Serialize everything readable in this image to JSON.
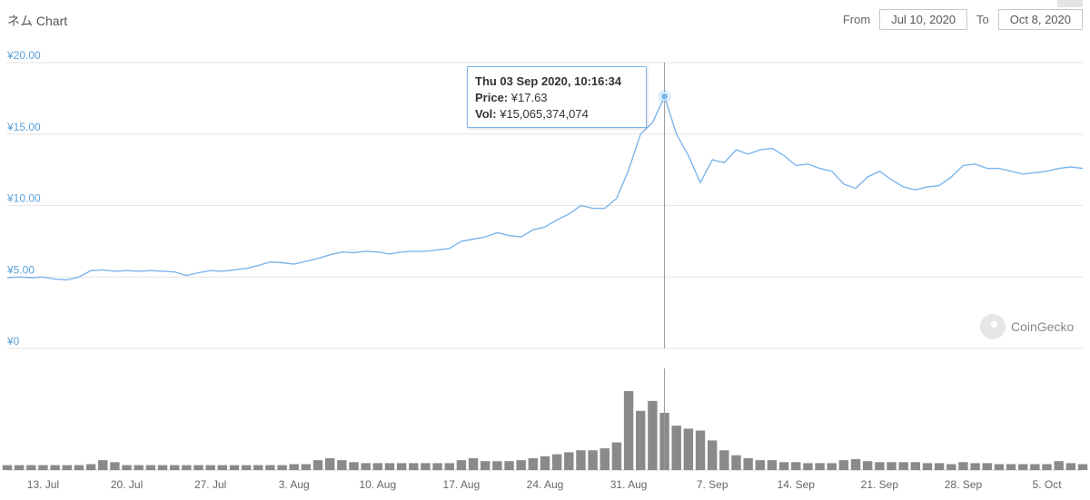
{
  "header": {
    "title": "ネム Chart",
    "from_label": "From",
    "from_value": "Jul 10, 2020",
    "to_label": "To",
    "to_value": "Oct 8, 2020"
  },
  "tooltip": {
    "date": "Thu 03 Sep 2020, 10:16:34",
    "price_label": "Price:",
    "price_value": "¥17.63",
    "vol_label": "Vol:",
    "vol_value": "¥15,065,374,074"
  },
  "watermark": {
    "text": "CoinGecko"
  },
  "colors": {
    "price_line": "#7cb5ec",
    "volume": "#8a8a8a",
    "axis_label": "#5aa0d8",
    "crosshair": "#999999"
  },
  "chart_data": {
    "type": "line",
    "series": [
      {
        "name": "Price",
        "x": [
          "Jul 10",
          "Jul 11",
          "Jul 12",
          "Jul 13",
          "Jul 14",
          "Jul 15",
          "Jul 16",
          "Jul 17",
          "Jul 18",
          "Jul 19",
          "Jul 20",
          "Jul 21",
          "Jul 22",
          "Jul 23",
          "Jul 24",
          "Jul 25",
          "Jul 26",
          "Jul 27",
          "Jul 28",
          "Jul 29",
          "Jul 30",
          "Jul 31",
          "Aug 1",
          "Aug 2",
          "Aug 3",
          "Aug 4",
          "Aug 5",
          "Aug 6",
          "Aug 7",
          "Aug 8",
          "Aug 9",
          "Aug 10",
          "Aug 11",
          "Aug 12",
          "Aug 13",
          "Aug 14",
          "Aug 15",
          "Aug 16",
          "Aug 17",
          "Aug 18",
          "Aug 19",
          "Aug 20",
          "Aug 21",
          "Aug 22",
          "Aug 23",
          "Aug 24",
          "Aug 25",
          "Aug 26",
          "Aug 27",
          "Aug 28",
          "Aug 29",
          "Aug 30",
          "Aug 31",
          "Sep 1",
          "Sep 2",
          "Sep 3",
          "Sep 4",
          "Sep 5",
          "Sep 6",
          "Sep 7",
          "Sep 8",
          "Sep 9",
          "Sep 10",
          "Sep 11",
          "Sep 12",
          "Sep 13",
          "Sep 14",
          "Sep 15",
          "Sep 16",
          "Sep 17",
          "Sep 18",
          "Sep 19",
          "Sep 20",
          "Sep 21",
          "Sep 22",
          "Sep 23",
          "Sep 24",
          "Sep 25",
          "Sep 26",
          "Sep 27",
          "Sep 28",
          "Sep 29",
          "Sep 30",
          "Oct 1",
          "Oct 2",
          "Oct 3",
          "Oct 4",
          "Oct 5",
          "Oct 6",
          "Oct 7",
          "Oct 8"
        ],
        "values": [
          4.95,
          5.0,
          4.95,
          5.0,
          4.85,
          4.8,
          5.0,
          5.45,
          5.5,
          5.4,
          5.45,
          5.4,
          5.45,
          5.4,
          5.35,
          5.1,
          5.3,
          5.45,
          5.4,
          5.5,
          5.6,
          5.8,
          6.05,
          6.0,
          5.9,
          6.1,
          6.3,
          6.55,
          6.75,
          6.7,
          6.8,
          6.75,
          6.6,
          6.75,
          6.8,
          6.8,
          6.9,
          7.0,
          7.5,
          7.65,
          7.8,
          8.1,
          7.9,
          7.8,
          8.3,
          8.5,
          9.0,
          9.4,
          10.0,
          9.8,
          9.8,
          10.5,
          12.5,
          15.0,
          15.8,
          17.63,
          15.0,
          13.5,
          11.6,
          13.2,
          13.0,
          13.9,
          13.6,
          13.9,
          14.0,
          13.5,
          12.8,
          12.9,
          12.6,
          12.4,
          11.5,
          11.2,
          12.0,
          12.4,
          11.8,
          11.3,
          11.1,
          11.3,
          11.4,
          12.0,
          12.8,
          12.9,
          12.6,
          12.6,
          12.4,
          12.2,
          12.3,
          12.4,
          12.6,
          12.7,
          12.6
        ],
        "volume": [
          0.05,
          0.05,
          0.05,
          0.05,
          0.05,
          0.05,
          0.05,
          0.06,
          0.1,
          0.08,
          0.05,
          0.05,
          0.05,
          0.05,
          0.05,
          0.05,
          0.05,
          0.05,
          0.05,
          0.05,
          0.05,
          0.05,
          0.05,
          0.05,
          0.06,
          0.06,
          0.1,
          0.12,
          0.1,
          0.08,
          0.07,
          0.07,
          0.07,
          0.07,
          0.07,
          0.07,
          0.07,
          0.07,
          0.1,
          0.12,
          0.09,
          0.09,
          0.09,
          0.1,
          0.12,
          0.14,
          0.16,
          0.18,
          0.2,
          0.2,
          0.22,
          0.28,
          0.8,
          0.6,
          0.7,
          0.58,
          0.45,
          0.42,
          0.4,
          0.3,
          0.2,
          0.15,
          0.12,
          0.1,
          0.1,
          0.08,
          0.08,
          0.07,
          0.07,
          0.07,
          0.1,
          0.11,
          0.09,
          0.08,
          0.08,
          0.08,
          0.08,
          0.07,
          0.07,
          0.06,
          0.08,
          0.07,
          0.07,
          0.06,
          0.06,
          0.06,
          0.06,
          0.06,
          0.09,
          0.07,
          0.06
        ]
      }
    ],
    "y_ticks": [
      "¥0",
      "¥5.00",
      "¥10.00",
      "¥15.00",
      "¥20.00"
    ],
    "ylim": [
      0,
      20
    ],
    "x_ticks": [
      {
        "date": "Jul 13",
        "label": "13. Jul"
      },
      {
        "date": "Jul 20",
        "label": "20. Jul"
      },
      {
        "date": "Jul 27",
        "label": "27. Jul"
      },
      {
        "date": "Aug 3",
        "label": "3. Aug"
      },
      {
        "date": "Aug 10",
        "label": "10. Aug"
      },
      {
        "date": "Aug 17",
        "label": "17. Aug"
      },
      {
        "date": "Aug 24",
        "label": "24. Aug"
      },
      {
        "date": "Aug 31",
        "label": "31. Aug"
      },
      {
        "date": "Sep 7",
        "label": "7. Sep"
      },
      {
        "date": "Sep 14",
        "label": "14. Sep"
      },
      {
        "date": "Sep 21",
        "label": "21. Sep"
      },
      {
        "date": "Sep 28",
        "label": "28. Sep"
      },
      {
        "date": "Oct 5",
        "label": "5. Oct"
      }
    ],
    "highlight": {
      "date": "Sep 3",
      "value": 17.63
    },
    "grid": true,
    "legend": "none"
  }
}
